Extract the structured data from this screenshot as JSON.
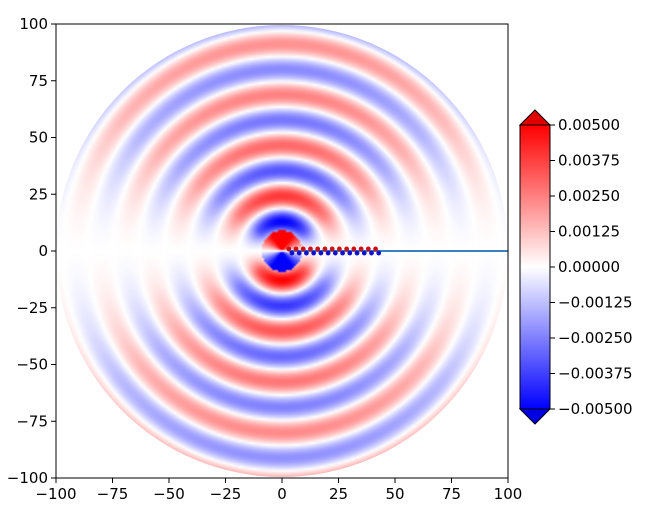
{
  "chart_data": {
    "type": "heatmap",
    "title": "",
    "xlabel": "",
    "ylabel": "",
    "xlim": [
      -100,
      100
    ],
    "ylim": [
      -100,
      100
    ],
    "x_ticks": [
      "−100",
      "−75",
      "−50",
      "−25",
      "0",
      "25",
      "50",
      "75",
      "100"
    ],
    "y_ticks": [
      "100",
      "75",
      "50",
      "25",
      "0",
      "−25",
      "−50",
      "−75",
      "−100"
    ],
    "x_tick_values": [
      -100,
      -75,
      -50,
      -25,
      0,
      25,
      50,
      75,
      100
    ],
    "y_tick_values": [
      100,
      75,
      50,
      25,
      0,
      -25,
      -50,
      -75,
      -100
    ],
    "domain_radius": 100,
    "colormap": "bwr",
    "colors": {
      "low": "#0000ff",
      "mid": "#ffffff",
      "high": "#ff0000"
    },
    "colorbar": {
      "vmin": -0.005,
      "vmax": 0.005,
      "extend": "both",
      "tick_values": [
        0.005,
        0.00375,
        0.0025,
        0.00125,
        0,
        -0.00125,
        -0.0025,
        -0.00375,
        -0.005
      ],
      "tick_labels": [
        "0.00500",
        "0.00375",
        "0.00250",
        "0.00125",
        "0.00000",
        "−0.00125",
        "−0.00250",
        "−0.00375",
        "−0.00500"
      ]
    },
    "grid": false
  }
}
